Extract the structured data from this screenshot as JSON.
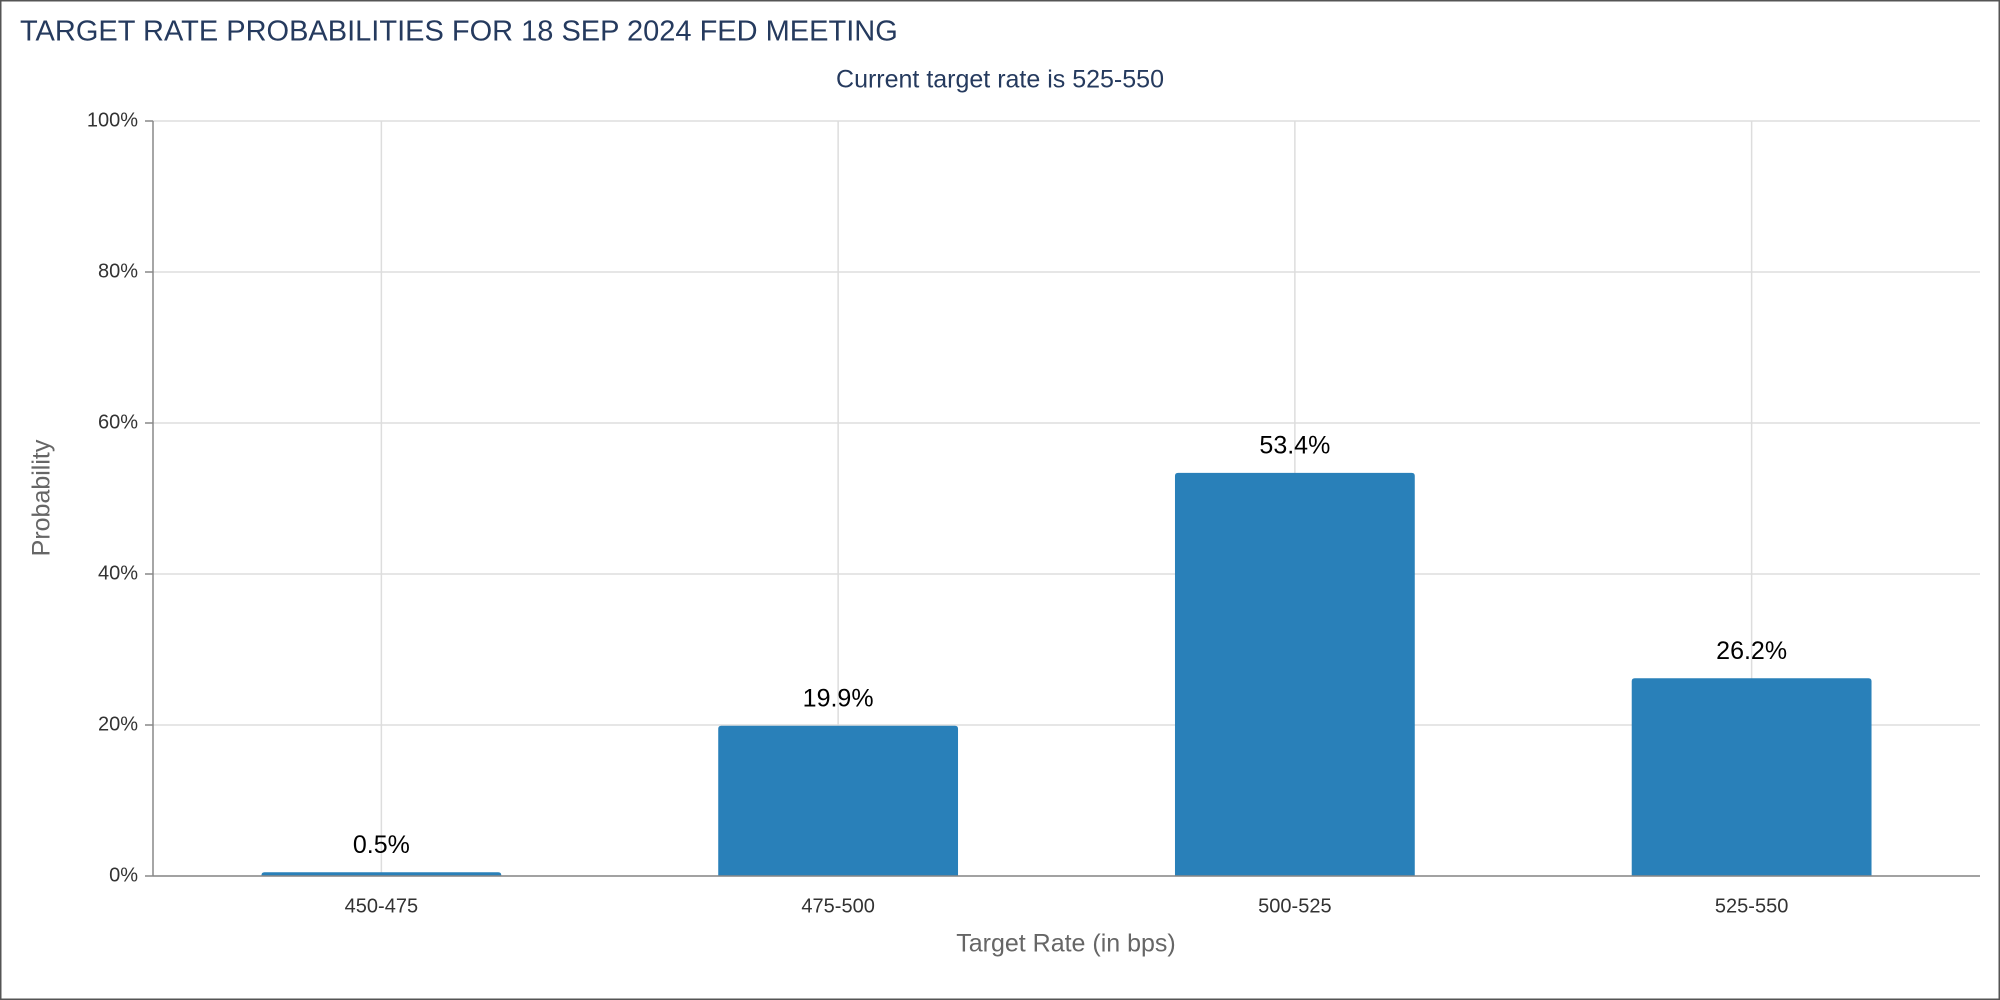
{
  "chart_data": {
    "type": "bar",
    "title": "TARGET RATE PROBABILITIES FOR 18 SEP 2024 FED MEETING",
    "subtitle": "Current target rate is 525-550",
    "x_label": "Target Rate (in bps)",
    "y_label": "Probability",
    "categories": [
      "450-475",
      "475-500",
      "500-525",
      "525-550"
    ],
    "values": [
      0.5,
      19.9,
      53.4,
      26.2
    ],
    "value_labels": [
      "0.5%",
      "19.9%",
      "53.4%",
      "26.2%"
    ],
    "color": "#2980b9",
    "ylim": [
      0,
      100
    ],
    "yticks": [
      {
        "value": 0,
        "label": "0%"
      },
      {
        "value": 20,
        "label": "20%"
      },
      {
        "value": 40,
        "label": "40%"
      },
      {
        "value": 60,
        "label": "60%"
      },
      {
        "value": 80,
        "label": "80%"
      },
      {
        "value": 100,
        "label": "100%"
      }
    ],
    "grid": true
  }
}
